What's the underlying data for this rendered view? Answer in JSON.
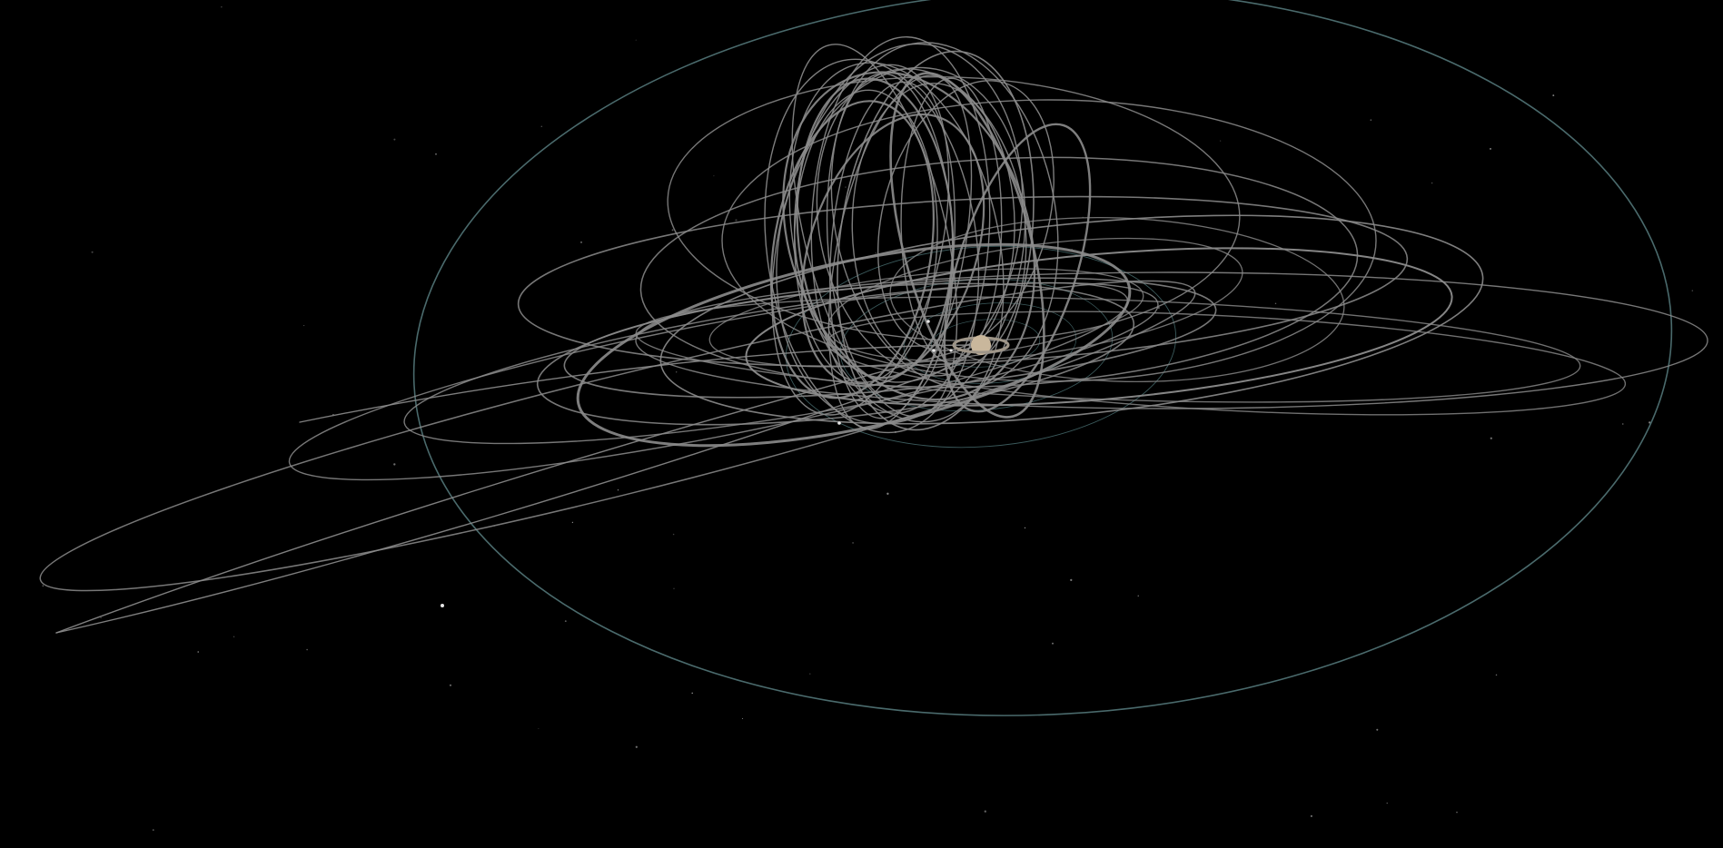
{
  "scene": {
    "background_color": "#000000",
    "trajectory_color": "#8c8c8c",
    "outer_orbit_color": "#4a6a6c",
    "inner_orbit_color": "#3b5a5c",
    "planet_color": "#c9b79c",
    "ring_color": "#9e9588",
    "moon_color": "#e6e6e6",
    "star_color": "#bfbfbf"
  }
}
